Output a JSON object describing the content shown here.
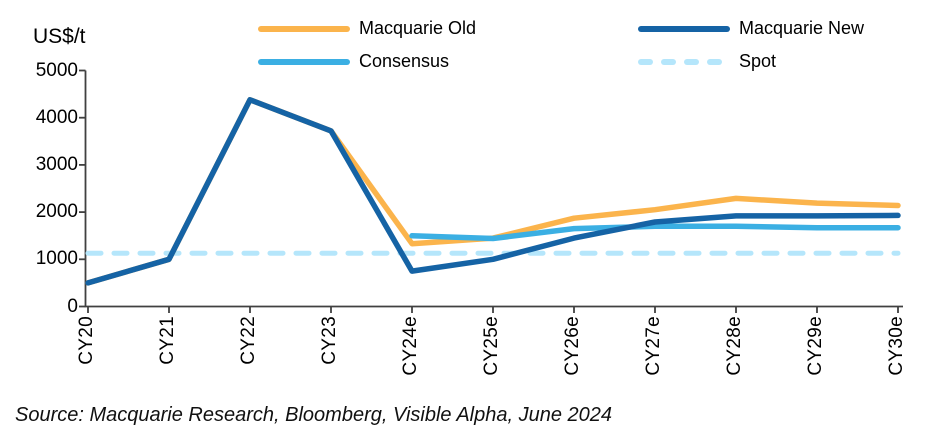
{
  "unit_label": "US$/t",
  "source_note": "Source: Macquarie Research, Bloomberg, Visible Alpha, June 2024",
  "colors": {
    "macquarie_old": "#FBB44C",
    "macquarie_new": "#1563A5",
    "consensus": "#3BAFE3",
    "spot": "#B5E6FB",
    "axis": "#404040",
    "text": "#000000"
  },
  "legend": {
    "items": [
      {
        "label": "Macquarie Old",
        "color": "#FBB44C",
        "style": "solid"
      },
      {
        "label": "Consensus",
        "color": "#3BAFE3",
        "style": "solid"
      },
      {
        "label": "Macquarie New",
        "color": "#1563A5",
        "style": "solid"
      },
      {
        "label": "Spot",
        "color": "#B5E6FB",
        "style": "dashed"
      }
    ]
  },
  "chart_data": {
    "type": "line",
    "title": "",
    "xlabel": "",
    "ylabel": "US$/t",
    "ylim": [
      0,
      5000
    ],
    "yticks": [
      0,
      1000,
      2000,
      3000,
      4000,
      5000
    ],
    "grid": false,
    "legend_position": "top",
    "categories": [
      "CY20",
      "CY21",
      "CY22",
      "CY23",
      "CY24e",
      "CY25e",
      "CY26e",
      "CY27e",
      "CY28e",
      "CY29e",
      "CY30e"
    ],
    "series": [
      {
        "name": "Spot",
        "color": "#B5E6FB",
        "dash": true,
        "values": [
          1130,
          1130,
          1130,
          1130,
          1130,
          1130,
          1130,
          1130,
          1130,
          1130,
          1130
        ]
      },
      {
        "name": "Macquarie Old",
        "color": "#FBB44C",
        "dash": false,
        "values": [
          500,
          1000,
          4380,
          3720,
          1330,
          1450,
          1870,
          2050,
          2290,
          2190,
          2140
        ]
      },
      {
        "name": "Consensus",
        "color": "#3BAFE3",
        "dash": false,
        "values": [
          null,
          null,
          null,
          null,
          1500,
          1440,
          1650,
          1700,
          1700,
          1670,
          1670
        ]
      },
      {
        "name": "Macquarie New",
        "color": "#1563A5",
        "dash": false,
        "values": [
          500,
          1000,
          4380,
          3720,
          750,
          1000,
          1450,
          1790,
          1920,
          1920,
          1930
        ]
      }
    ]
  }
}
